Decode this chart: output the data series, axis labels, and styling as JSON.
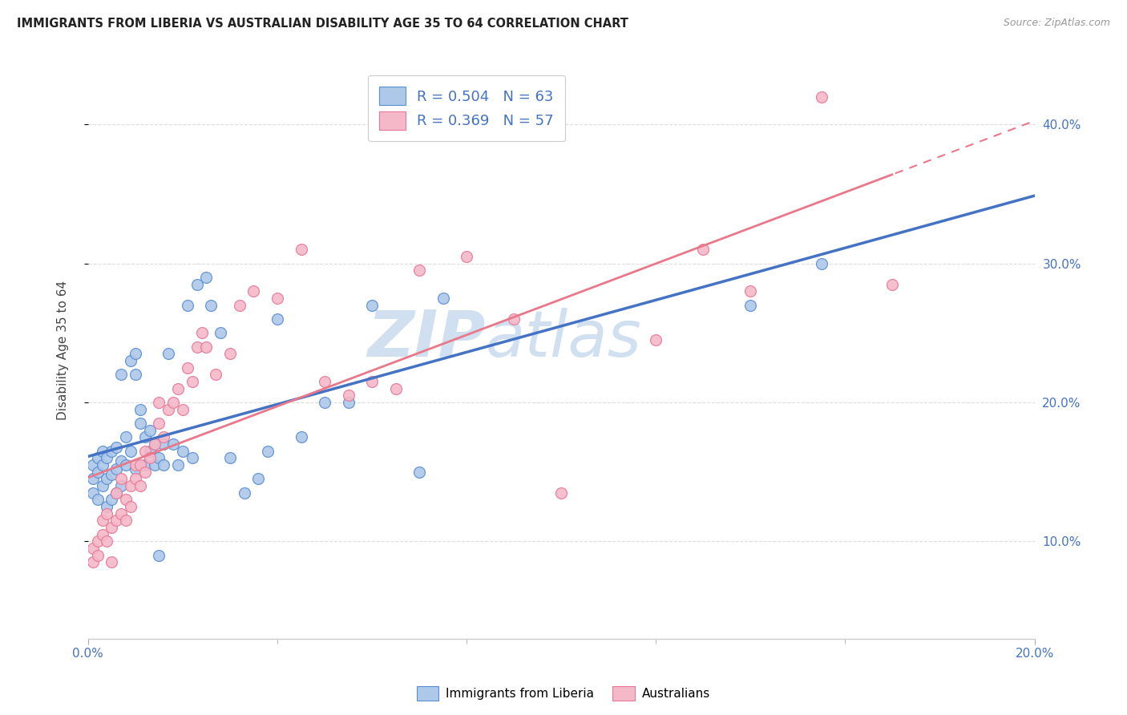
{
  "title": "IMMIGRANTS FROM LIBERIA VS AUSTRALIAN DISABILITY AGE 35 TO 64 CORRELATION CHART",
  "source": "Source: ZipAtlas.com",
  "ylabel": "Disability Age 35 to 64",
  "xlim": [
    0.0,
    0.2
  ],
  "ylim": [
    0.03,
    0.445
  ],
  "yticks": [
    0.1,
    0.2,
    0.3,
    0.4
  ],
  "legend_line1": "R = 0.504   N = 63",
  "legend_line2": "R = 0.369   N = 57",
  "blue_color": "#adc8e8",
  "blue_edge_color": "#5a8fd4",
  "blue_line_color": "#4472c4",
  "pink_color": "#f5b8c8",
  "pink_edge_color": "#e87898",
  "pink_line_color": "#e8788a",
  "watermark_color": "#d0e0f0",
  "blue_scatter_x": [
    0.001,
    0.001,
    0.001,
    0.002,
    0.002,
    0.002,
    0.003,
    0.003,
    0.003,
    0.004,
    0.004,
    0.004,
    0.005,
    0.005,
    0.005,
    0.006,
    0.006,
    0.006,
    0.007,
    0.007,
    0.007,
    0.008,
    0.008,
    0.009,
    0.009,
    0.01,
    0.01,
    0.01,
    0.011,
    0.011,
    0.012,
    0.012,
    0.013,
    0.013,
    0.014,
    0.014,
    0.015,
    0.015,
    0.016,
    0.016,
    0.017,
    0.018,
    0.019,
    0.02,
    0.021,
    0.022,
    0.023,
    0.025,
    0.026,
    0.028,
    0.03,
    0.033,
    0.036,
    0.038,
    0.04,
    0.045,
    0.05,
    0.055,
    0.06,
    0.07,
    0.075,
    0.14,
    0.155
  ],
  "blue_scatter_y": [
    0.135,
    0.145,
    0.155,
    0.13,
    0.15,
    0.16,
    0.14,
    0.155,
    0.165,
    0.125,
    0.145,
    0.16,
    0.13,
    0.148,
    0.165,
    0.135,
    0.152,
    0.168,
    0.14,
    0.158,
    0.22,
    0.155,
    0.175,
    0.165,
    0.23,
    0.152,
    0.22,
    0.235,
    0.185,
    0.195,
    0.155,
    0.175,
    0.165,
    0.18,
    0.17,
    0.155,
    0.16,
    0.09,
    0.17,
    0.155,
    0.235,
    0.17,
    0.155,
    0.165,
    0.27,
    0.16,
    0.285,
    0.29,
    0.27,
    0.25,
    0.16,
    0.135,
    0.145,
    0.165,
    0.26,
    0.175,
    0.2,
    0.2,
    0.27,
    0.15,
    0.275,
    0.27,
    0.3
  ],
  "pink_scatter_x": [
    0.001,
    0.001,
    0.002,
    0.002,
    0.003,
    0.003,
    0.004,
    0.004,
    0.005,
    0.005,
    0.006,
    0.006,
    0.007,
    0.007,
    0.008,
    0.008,
    0.009,
    0.009,
    0.01,
    0.01,
    0.011,
    0.011,
    0.012,
    0.012,
    0.013,
    0.014,
    0.015,
    0.015,
    0.016,
    0.017,
    0.018,
    0.019,
    0.02,
    0.021,
    0.022,
    0.023,
    0.024,
    0.025,
    0.027,
    0.03,
    0.032,
    0.035,
    0.04,
    0.045,
    0.05,
    0.055,
    0.06,
    0.065,
    0.07,
    0.08,
    0.09,
    0.1,
    0.12,
    0.13,
    0.14,
    0.155,
    0.17
  ],
  "pink_scatter_y": [
    0.085,
    0.095,
    0.09,
    0.1,
    0.105,
    0.115,
    0.1,
    0.12,
    0.11,
    0.085,
    0.115,
    0.135,
    0.12,
    0.145,
    0.13,
    0.115,
    0.14,
    0.125,
    0.155,
    0.145,
    0.14,
    0.155,
    0.15,
    0.165,
    0.16,
    0.17,
    0.185,
    0.2,
    0.175,
    0.195,
    0.2,
    0.21,
    0.195,
    0.225,
    0.215,
    0.24,
    0.25,
    0.24,
    0.22,
    0.235,
    0.27,
    0.28,
    0.275,
    0.31,
    0.215,
    0.205,
    0.215,
    0.21,
    0.295,
    0.305,
    0.26,
    0.135,
    0.245,
    0.31,
    0.28,
    0.42,
    0.285
  ]
}
